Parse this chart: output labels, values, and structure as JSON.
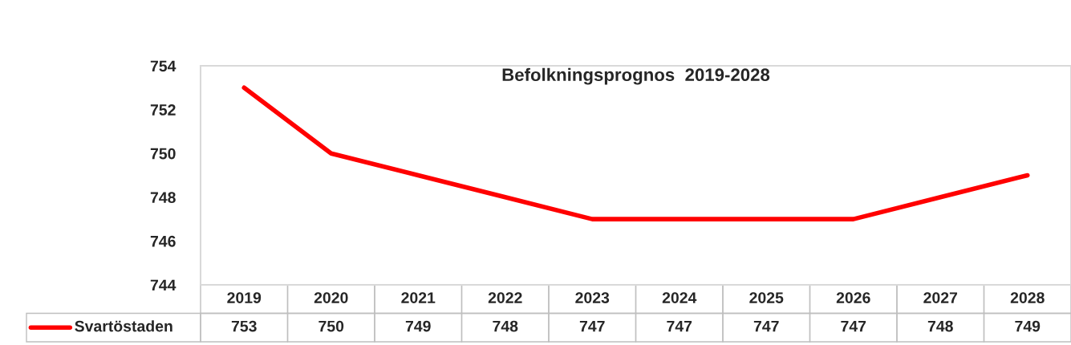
{
  "chart_data": {
    "type": "line",
    "title": "Befolkningsprognos  2019-2028",
    "categories": [
      "2019",
      "2020",
      "2021",
      "2022",
      "2023",
      "2024",
      "2025",
      "2026",
      "2027",
      "2028"
    ],
    "series": [
      {
        "name": "Svartöstaden",
        "color": "#ff0000",
        "values": [
          753,
          750,
          749,
          748,
          747,
          747,
          747,
          747,
          748,
          749
        ]
      }
    ],
    "ylim": [
      744,
      754
    ],
    "yticks": [
      744,
      746,
      748,
      750,
      752,
      754
    ],
    "data_labels": true,
    "legend": "bottom",
    "grid": false,
    "marker": "none",
    "line_style": "solid"
  }
}
